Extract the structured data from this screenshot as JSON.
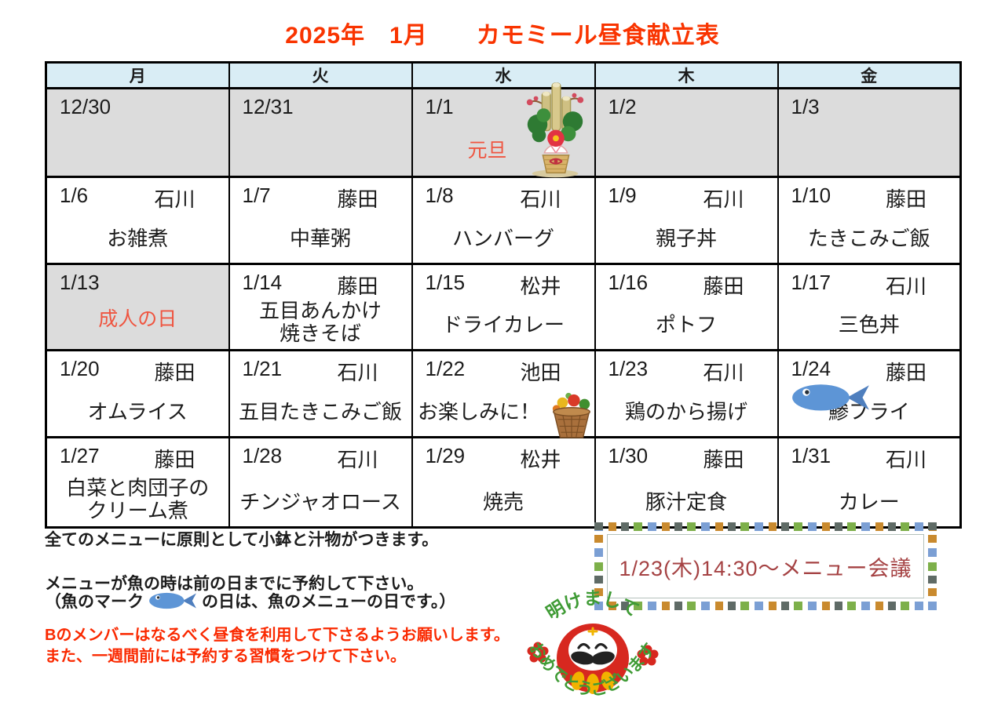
{
  "title": "2025年　1月　　カモミール昼食献立表",
  "table": {
    "day_headers": [
      "月",
      "火",
      "水",
      "木",
      "金"
    ],
    "weeks": [
      {
        "cells": [
          {
            "date": "12/30",
            "holiday": true
          },
          {
            "date": "12/31",
            "holiday": true
          },
          {
            "date": "1/1",
            "holiday": true,
            "label": "元旦",
            "image": "kadomatsu"
          },
          {
            "date": "1/2",
            "holiday": true
          },
          {
            "date": "1/3",
            "holiday": true
          }
        ]
      },
      {
        "cells": [
          {
            "date": "1/6",
            "cook": "石川",
            "menu": "お雑煮"
          },
          {
            "date": "1/7",
            "cook": "藤田",
            "menu": "中華粥"
          },
          {
            "date": "1/8",
            "cook": "石川",
            "menu": "ハンバーグ"
          },
          {
            "date": "1/9",
            "cook": "石川",
            "menu": "親子丼"
          },
          {
            "date": "1/10",
            "cook": "藤田",
            "menu": "たきこみご飯"
          }
        ]
      },
      {
        "cells": [
          {
            "date": "1/13",
            "holiday": true,
            "label": "成人の日"
          },
          {
            "date": "1/14",
            "cook": "藤田",
            "menu": "五目あんかけ\n焼きそば"
          },
          {
            "date": "1/15",
            "cook": "松井",
            "menu": "ドライカレー"
          },
          {
            "date": "1/16",
            "cook": "藤田",
            "menu": "ポトフ"
          },
          {
            "date": "1/17",
            "cook": "石川",
            "menu": "三色丼"
          }
        ]
      },
      {
        "cells": [
          {
            "date": "1/20",
            "cook": "藤田",
            "menu": "オムライス"
          },
          {
            "date": "1/21",
            "cook": "石川",
            "menu": "五目たきこみご飯"
          },
          {
            "date": "1/22",
            "cook": "池田",
            "menu": "お楽しみに！",
            "image": "basket"
          },
          {
            "date": "1/23",
            "cook": "石川",
            "menu": "鶏のから揚げ"
          },
          {
            "date": "1/24",
            "cook": "藤田",
            "menu": "鯵フライ",
            "image": "fish"
          }
        ]
      },
      {
        "cells": [
          {
            "date": "1/27",
            "cook": "藤田",
            "menu": "白菜と肉団子の\nクリーム煮"
          },
          {
            "date": "1/28",
            "cook": "石川",
            "menu": "チンジャオロース"
          },
          {
            "date": "1/29",
            "cook": "松井",
            "menu": "焼売"
          },
          {
            "date": "1/30",
            "cook": "藤田",
            "menu": "豚汁定食"
          },
          {
            "date": "1/31",
            "cook": "石川",
            "menu": "カレー"
          }
        ]
      }
    ]
  },
  "notes": {
    "line1": "全てのメニューに原則として小鉢と汁物がつきます。",
    "line2": "メニューが魚の時は前の日までに予約して下さい。",
    "line3_prefix": "（魚のマーク",
    "line3_suffix": "の日は、魚のメニューの日です。）",
    "warning_line1": "Bのメンバーはなるべく昼食を利用して下さるようお願いします。",
    "warning_line2": "また、一週間前には予約する習慣をつけて下さい。"
  },
  "meeting_box": {
    "label": "1/23(木)14:30〜メニュー会議"
  },
  "greeting": {
    "top": "明けまして",
    "bottom": "おめでとうございます"
  },
  "icons": {
    "fish": "blue-fish",
    "kadomatsu": "new-year-pine-decoration",
    "basket": "vegetable-basket",
    "daruma": "daruma-doll"
  },
  "colors": {
    "title_red": "#f93400",
    "holiday_red": "#ef5540",
    "header_blue": "#d9edf5",
    "holiday_gray": "#dcdcdc",
    "meeting_maroon": "#a54243",
    "warning_red": "#fa2900"
  }
}
